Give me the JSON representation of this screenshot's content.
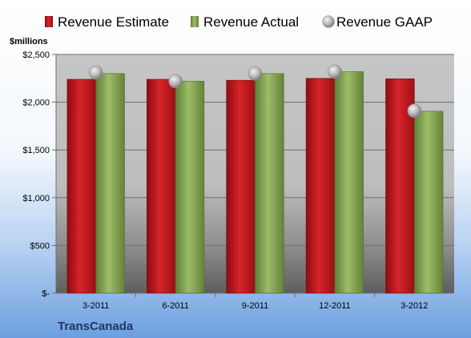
{
  "company": "TransCanada",
  "colors": {
    "estimate": "#c0141c",
    "actual": "#8aad5a",
    "gaap": "#b8b8b8"
  },
  "chart_data": {
    "type": "bar",
    "title": "",
    "xlabel": "",
    "ylabel": "$millions",
    "categories": [
      "3-2011",
      "6-2011",
      "9-2011",
      "12-2011",
      "3-2012"
    ],
    "series": [
      {
        "name": "Revenue Estimate",
        "kind": "bar",
        "values": [
          2240,
          2240,
          2230,
          2250,
          2245
        ]
      },
      {
        "name": "Revenue Actual",
        "kind": "bar",
        "values": [
          2300,
          2220,
          2300,
          2320,
          1905
        ]
      },
      {
        "name": "Revenue GAAP",
        "kind": "marker",
        "values": [
          2310,
          2220,
          2300,
          2320,
          1910
        ]
      }
    ],
    "ylim": [
      0,
      2500
    ],
    "yticks": [
      0,
      500,
      1000,
      1500,
      2000,
      2500
    ],
    "ytick_labels": [
      "$-",
      "$500",
      "$1,000",
      "$1,500",
      "$2,000",
      "$2,500"
    ],
    "grid": true,
    "legend": "top"
  }
}
